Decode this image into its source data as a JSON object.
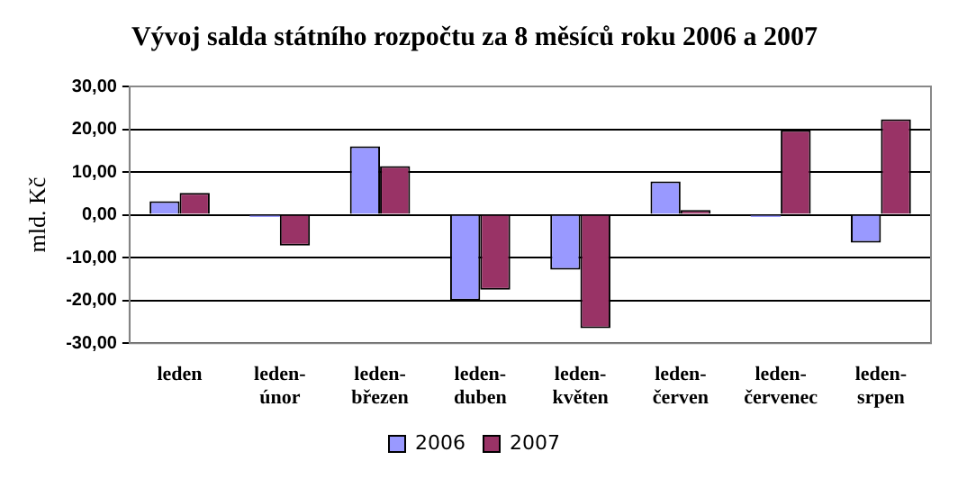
{
  "chart_data": {
    "type": "bar",
    "title": "Vývoj salda státního rozpočtu za 8 měsíců roku 2006 a 2007",
    "ylabel": "mld. Kč",
    "categories": [
      "leden",
      "leden-únor",
      "leden-březen",
      "leden-duben",
      "leden-květen",
      "leden-červen",
      "leden-červenec",
      "leden-srpen"
    ],
    "series": [
      {
        "name": "2006",
        "color": "#9999ff",
        "values": [
          3.2,
          -0.5,
          16.0,
          -20.0,
          -12.8,
          7.8,
          -0.5,
          -6.5
        ]
      },
      {
        "name": "2007",
        "color": "#993366",
        "values": [
          5.1,
          -7.2,
          11.4,
          -17.5,
          -26.5,
          1.1,
          19.8,
          22.3
        ]
      }
    ],
    "ylim": [
      -30,
      30
    ],
    "yticks": [
      {
        "value": -30,
        "label": "-30,00"
      },
      {
        "value": -20,
        "label": "-20,00"
      },
      {
        "value": -10,
        "label": "-10,00"
      },
      {
        "value": 0,
        "label": "0,00"
      },
      {
        "value": 10,
        "label": "10,00"
      },
      {
        "value": 20,
        "label": "20,00"
      },
      {
        "value": 30,
        "label": "30,00"
      }
    ],
    "grid": "y",
    "legend": "bottom"
  }
}
